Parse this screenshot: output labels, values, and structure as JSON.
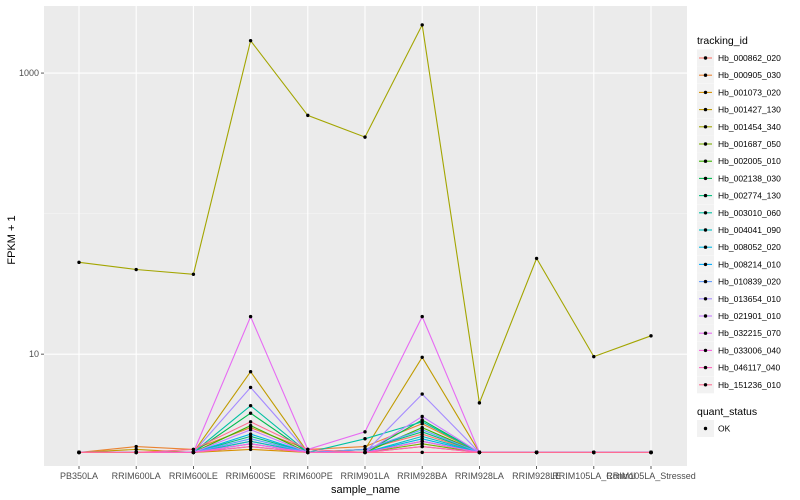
{
  "chart_data": {
    "type": "line",
    "xlabel": "sample_name",
    "ylabel": "FPKM + 1",
    "y_scale": "log10",
    "ylim": [
      1.6,
      3000
    ],
    "y_ticks": [
      10,
      1000
    ],
    "y_tick_labels": [
      "10",
      "1000"
    ],
    "categories": [
      "PB350LA",
      "RRIM600LA",
      "RRIM600LE",
      "RRIM600SE",
      "RRIM600PE",
      "RRIM901LA",
      "RRIM928BA",
      "RRIM928LA",
      "RRIM928LE",
      "RRIM105LA_Control",
      "RRIM105LA_Stressed"
    ],
    "legend_colour": {
      "title": "tracking_id",
      "position": "right"
    },
    "legend_shape": {
      "title": "quant_status",
      "items": [
        "OK"
      ]
    },
    "series": [
      {
        "name": "Hb_000862_020",
        "color": "#F8766D",
        "values": [
          2.0,
          2.0,
          2.0,
          2.4,
          2.0,
          2.1,
          2.7,
          2.0,
          2.0,
          2.0,
          2.0
        ]
      },
      {
        "name": "Hb_000905_030",
        "color": "#EA8331",
        "values": [
          2.0,
          2.2,
          2.1,
          3.0,
          2.1,
          2.2,
          3.2,
          2.0,
          2.0,
          2.0,
          2.0
        ]
      },
      {
        "name": "Hb_001073_020",
        "color": "#D89000",
        "values": [
          2.0,
          2.0,
          2.0,
          2.1,
          2.0,
          2.0,
          2.2,
          2.0,
          2.0,
          2.0,
          2.0
        ]
      },
      {
        "name": "Hb_001427_130",
        "color": "#C09B00",
        "values": [
          2.0,
          2.1,
          2.0,
          7.5,
          2.0,
          2.1,
          9.5,
          2.0,
          2.0,
          2.0,
          2.0
        ]
      },
      {
        "name": "Hb_001454_340",
        "color": "#A3A500",
        "values": [
          45,
          40,
          37,
          1700,
          500,
          350,
          2200,
          4.5,
          48,
          9.6,
          13.5
        ]
      },
      {
        "name": "Hb_001687_050",
        "color": "#7CAE00",
        "values": [
          2.0,
          2.0,
          2.0,
          2.2,
          2.0,
          2.0,
          2.3,
          2.0,
          2.0,
          2.0,
          2.0
        ]
      },
      {
        "name": "Hb_002005_010",
        "color": "#39B600",
        "values": [
          2.0,
          2.0,
          2.0,
          3.1,
          2.0,
          2.0,
          3.0,
          2.0,
          2.0,
          2.0,
          2.0
        ]
      },
      {
        "name": "Hb_002138_030",
        "color": "#00BB4E",
        "values": [
          2.0,
          2.0,
          2.0,
          3.8,
          2.0,
          2.0,
          3.4,
          2.0,
          2.0,
          2.0,
          2.0
        ]
      },
      {
        "name": "Hb_002774_130",
        "color": "#00BF7D",
        "values": [
          2.0,
          2.0,
          2.0,
          2.6,
          2.0,
          2.1,
          2.8,
          2.0,
          2.0,
          2.0,
          2.0
        ]
      },
      {
        "name": "Hb_003010_060",
        "color": "#00C1A3",
        "values": [
          2.0,
          2.0,
          2.0,
          4.3,
          2.0,
          2.5,
          3.3,
          2.0,
          2.0,
          2.0,
          2.0
        ]
      },
      {
        "name": "Hb_004041_090",
        "color": "#00BFC4",
        "values": [
          2.0,
          2.0,
          2.0,
          2.4,
          2.0,
          2.0,
          2.6,
          2.0,
          2.0,
          2.0,
          2.0
        ]
      },
      {
        "name": "Hb_008052_020",
        "color": "#00B8E5",
        "values": [
          2.0,
          2.0,
          2.0,
          2.7,
          2.0,
          2.0,
          2.5,
          2.0,
          2.0,
          2.0,
          2.0
        ]
      },
      {
        "name": "Hb_008214_010",
        "color": "#00ABFD",
        "values": [
          2.0,
          2.0,
          2.0,
          2.3,
          2.0,
          2.0,
          2.4,
          2.0,
          2.0,
          2.0,
          2.0
        ]
      },
      {
        "name": "Hb_010839_020",
        "color": "#619CFF",
        "values": [
          2.0,
          2.0,
          2.0,
          2.5,
          2.0,
          2.1,
          2.9,
          2.0,
          2.0,
          2.0,
          2.0
        ]
      },
      {
        "name": "Hb_013654_010",
        "color": "#A58AFF",
        "values": [
          2.0,
          2.0,
          2.0,
          5.8,
          2.0,
          2.0,
          5.2,
          2.0,
          2.0,
          2.0,
          2.0
        ]
      },
      {
        "name": "Hb_021901_010",
        "color": "#C77CFF",
        "values": [
          2.0,
          2.0,
          2.0,
          2.9,
          2.0,
          2.0,
          3.6,
          2.0,
          2.0,
          2.0,
          2.0
        ]
      },
      {
        "name": "Hb_032215_070",
        "color": "#E76BF3",
        "values": [
          2.0,
          2.0,
          2.0,
          18.5,
          2.1,
          2.8,
          18.5,
          2.0,
          2.0,
          2.0,
          2.0
        ]
      },
      {
        "name": "Hb_033006_040",
        "color": "#F863DF",
        "values": [
          2.0,
          2.0,
          2.0,
          2.3,
          2.0,
          2.0,
          2.4,
          2.0,
          2.0,
          2.0,
          2.0
        ]
      },
      {
        "name": "Hb_046117_040",
        "color": "#FF62BC",
        "values": [
          2.0,
          2.0,
          2.0,
          2.2,
          2.0,
          2.0,
          2.2,
          2.0,
          2.0,
          2.0,
          2.0
        ]
      },
      {
        "name": "Hb_151236_010",
        "color": "#FF6C91",
        "values": [
          2.0,
          2.0,
          2.1,
          3.3,
          2.1,
          2.0,
          2.0,
          2.0,
          2.0,
          2.0,
          2.0
        ]
      }
    ]
  }
}
